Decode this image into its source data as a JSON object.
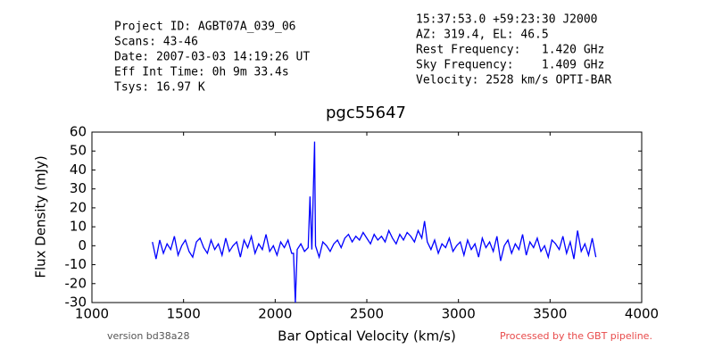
{
  "chart_data": {
    "type": "line",
    "title": "pgc55647",
    "header_left": [
      "Project ID: AGBT07A_039_06",
      "Scans: 43-46",
      "Date: 2007-03-03 14:19:26 UT",
      "Eff Int Time: 0h 9m 33.4s",
      "Tsys: 16.97 K"
    ],
    "header_right": [
      "15:37:53.0 +59:23:30 J2000",
      "AZ: 319.4, EL: 46.5",
      "Rest Frequency:   1.420 GHz",
      "Sky Frequency:    1.409 GHz",
      "Velocity: 2528 km/s OPTI-BAR"
    ],
    "xlabel": "Bar Optical Velocity (km/s)",
    "ylabel": "Flux Density (mJy)",
    "footer_left": "version bd38a28",
    "footer_right": "Processed by the GBT pipeline.",
    "xlim": [
      1000,
      4000
    ],
    "ylim": [
      -30,
      60
    ],
    "xticks": [
      1000,
      1500,
      2000,
      2500,
      3000,
      3500,
      4000
    ],
    "yticks": [
      -30,
      -20,
      -10,
      0,
      10,
      20,
      30,
      40,
      50,
      60
    ],
    "series": [
      {
        "name": "pgc55647",
        "color": "#0000ff",
        "x": [
          1330,
          1350,
          1370,
          1390,
          1410,
          1430,
          1450,
          1470,
          1490,
          1510,
          1530,
          1550,
          1570,
          1590,
          1610,
          1630,
          1650,
          1670,
          1690,
          1710,
          1730,
          1750,
          1770,
          1790,
          1810,
          1830,
          1850,
          1870,
          1890,
          1910,
          1930,
          1950,
          1970,
          1990,
          2010,
          2030,
          2050,
          2070,
          2090,
          2100,
          2110,
          2120,
          2140,
          2160,
          2180,
          2190,
          2200,
          2215,
          2220,
          2240,
          2260,
          2280,
          2300,
          2320,
          2340,
          2360,
          2380,
          2400,
          2420,
          2440,
          2460,
          2480,
          2500,
          2520,
          2540,
          2560,
          2580,
          2600,
          2620,
          2640,
          2660,
          2680,
          2700,
          2720,
          2740,
          2760,
          2780,
          2800,
          2815,
          2830,
          2850,
          2870,
          2890,
          2910,
          2930,
          2950,
          2970,
          2990,
          3010,
          3030,
          3050,
          3070,
          3090,
          3110,
          3130,
          3150,
          3170,
          3190,
          3210,
          3230,
          3250,
          3270,
          3290,
          3310,
          3330,
          3350,
          3370,
          3390,
          3410,
          3430,
          3450,
          3470,
          3490,
          3510,
          3530,
          3550,
          3570,
          3590,
          3610,
          3630,
          3650,
          3670,
          3690,
          3710,
          3730,
          3750
        ],
        "values": [
          2,
          -7,
          3,
          -4,
          1,
          -2,
          5,
          -5,
          0,
          3,
          -3,
          -6,
          2,
          4,
          -1,
          -4,
          3,
          -2,
          1,
          -5,
          4,
          -3,
          0,
          2,
          -6,
          3,
          -1,
          5,
          -4,
          1,
          -2,
          6,
          -3,
          0,
          -5,
          2,
          -1,
          3,
          -4,
          -4,
          -30,
          -2,
          1,
          -3,
          -1,
          26,
          -2,
          55,
          0,
          -6,
          2,
          0,
          -3,
          1,
          3,
          -1,
          4,
          6,
          2,
          5,
          3,
          7,
          4,
          1,
          6,
          3,
          5,
          2,
          8,
          4,
          1,
          6,
          3,
          7,
          5,
          2,
          8,
          4,
          13,
          2,
          -2,
          3,
          -4,
          1,
          -1,
          4,
          -3,
          0,
          2,
          -5,
          3,
          -2,
          1,
          -6,
          4,
          -1,
          2,
          -3,
          5,
          -8,
          0,
          3,
          -4,
          1,
          -2,
          6,
          -5,
          2,
          -1,
          4,
          -3,
          0,
          -6,
          3,
          1,
          -2,
          5,
          -4,
          2,
          -7,
          8,
          -3,
          1,
          -5,
          4,
          -6
        ]
      }
    ]
  }
}
